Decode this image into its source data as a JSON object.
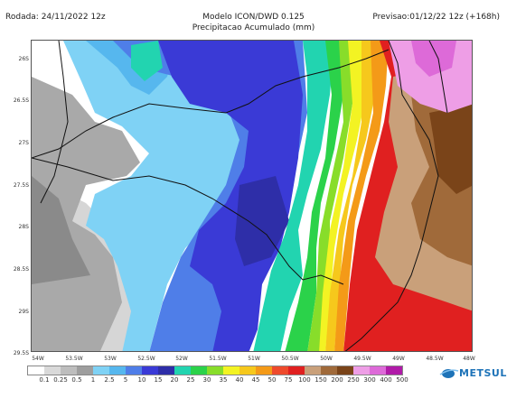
{
  "header": {
    "run": "Rodada: 24/11/2022 12z",
    "title": "Modelo ICON/DWD 0.125",
    "subtitle": "Precipitacao Acumulado (mm)",
    "forecast": "Previsao:01/12/22 12z (+168h)"
  },
  "map": {
    "lat_labels": [
      "26S",
      "26.5S",
      "27S",
      "27.5S",
      "28S",
      "28.5S",
      "29S",
      "29.5S"
    ],
    "lon_labels": [
      "54W",
      "53.5W",
      "53W",
      "52.5W",
      "52W",
      "51.5W",
      "51W",
      "50.5W",
      "50W",
      "49.5W",
      "49W",
      "48.5W",
      "48W"
    ],
    "lon_range": [
      -54,
      -48
    ],
    "lat_range": [
      -25.85,
      -29.75
    ]
  },
  "legend": {
    "values": [
      "0.1",
      "0.25",
      "0.5",
      "1",
      "2.5",
      "5",
      "10",
      "15",
      "20",
      "25",
      "30",
      "35",
      "40",
      "45",
      "50",
      "75",
      "100",
      "150",
      "200",
      "250",
      "300",
      "400",
      "500"
    ],
    "colors": [
      "#ffffff",
      "#d9d9d9",
      "#bdbdbd",
      "#9e9e9e",
      "#7fd2f5",
      "#56b7ee",
      "#4f7ee8",
      "#3a3ad6",
      "#2e2ea8",
      "#22d4b0",
      "#2bd24a",
      "#88dd2a",
      "#f3f323",
      "#f6c81c",
      "#f49a18",
      "#ee4a2c",
      "#e02020",
      "#c9a07a",
      "#a06a3a",
      "#7a4419",
      "#ee9ee6",
      "#dd6ad8",
      "#b01aa8"
    ]
  },
  "brand": {
    "name": "METSUL",
    "logo_icon": "globe-swoosh-icon"
  }
}
